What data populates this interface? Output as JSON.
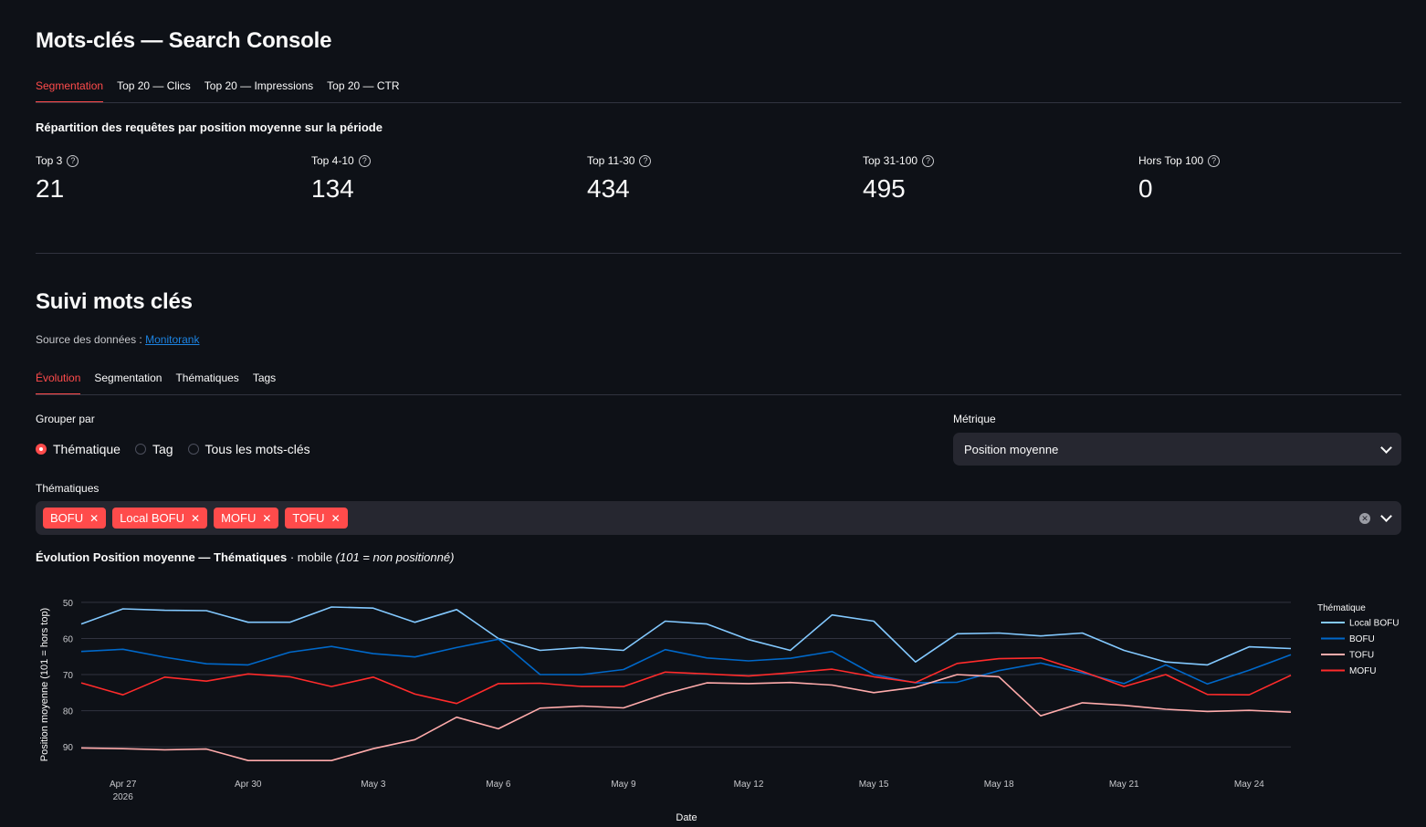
{
  "page_title": "Mots-clés — Search Console",
  "gsc_tabs": [
    {
      "label": "Segmentation",
      "active": true
    },
    {
      "label": "Top 20 — Clics",
      "active": false
    },
    {
      "label": "Top 20 — Impressions",
      "active": false
    },
    {
      "label": "Top 20 — CTR",
      "active": false
    }
  ],
  "repartition_title": "Répartition des requêtes par position moyenne sur la période",
  "metrics": [
    {
      "label": "Top 3",
      "value": "21"
    },
    {
      "label": "Top 4-10",
      "value": "134"
    },
    {
      "label": "Top 11-30",
      "value": "434"
    },
    {
      "label": "Top 31-100",
      "value": "495"
    },
    {
      "label": "Hors Top 100",
      "value": "0"
    }
  ],
  "suivi_title": "Suivi mots clés",
  "source_prefix": "Source des données :",
  "source_link": "Monitorank",
  "suivi_tabs": [
    {
      "label": "Évolution",
      "active": true
    },
    {
      "label": "Segmentation",
      "active": false
    },
    {
      "label": "Thématiques",
      "active": false
    },
    {
      "label": "Tags",
      "active": false
    }
  ],
  "group_by": {
    "label": "Grouper par",
    "options": [
      {
        "label": "Thématique",
        "selected": true
      },
      {
        "label": "Tag",
        "selected": false
      },
      {
        "label": "Tous les mots-clés",
        "selected": false
      }
    ]
  },
  "metric_select": {
    "label": "Métrique",
    "value": "Position moyenne"
  },
  "thematiques": {
    "label": "Thématiques",
    "chips": [
      "BOFU",
      "Local BOFU",
      "MOFU",
      "TOFU"
    ]
  },
  "chart_heading": {
    "bold": "Évolution Position moyenne — Thématiques",
    "normal": " · mobile ",
    "italic": "(101 = non positionné)"
  },
  "colors": {
    "accent": "#ff4b4b",
    "local_bofu": "#83c9ff",
    "bofu": "#0068c9",
    "tofu": "#ffabab",
    "mofu": "#ff2b2b"
  },
  "chart_data": {
    "type": "line",
    "xlabel": "Date",
    "ylabel": "Position moyenne (101 = hors top)",
    "y_reversed": true,
    "ylim": [
      94.5,
      47.5
    ],
    "y_ticks": [
      50,
      60,
      70,
      80,
      90
    ],
    "x_tick_labels": [
      {
        "day": 1,
        "label": "Apr 27",
        "sub": "2026"
      },
      {
        "day": 4,
        "label": "Apr 30",
        "sub": ""
      },
      {
        "day": 7,
        "label": "May 3",
        "sub": ""
      },
      {
        "day": 10,
        "label": "May 6",
        "sub": ""
      },
      {
        "day": 13,
        "label": "May 9",
        "sub": ""
      },
      {
        "day": 16,
        "label": "May 12",
        "sub": ""
      },
      {
        "day": 19,
        "label": "May 15",
        "sub": ""
      },
      {
        "day": 22,
        "label": "May 18",
        "sub": ""
      },
      {
        "day": 25,
        "label": "May 21",
        "sub": ""
      },
      {
        "day": 28,
        "label": "May 24",
        "sub": ""
      }
    ],
    "x": [
      "2026-04-26",
      "2026-04-27",
      "2026-04-28",
      "2026-04-29",
      "2026-04-30",
      "2026-05-01",
      "2026-05-02",
      "2026-05-03",
      "2026-05-04",
      "2026-05-05",
      "2026-05-06",
      "2026-05-07",
      "2026-05-08",
      "2026-05-09",
      "2026-05-10",
      "2026-05-11",
      "2026-05-12",
      "2026-05-13",
      "2026-05-14",
      "2026-05-15",
      "2026-05-16",
      "2026-05-17",
      "2026-05-18",
      "2026-05-19",
      "2026-05-20",
      "2026-05-21",
      "2026-05-22",
      "2026-05-23",
      "2026-05-24",
      "2026-05-25"
    ],
    "legend_title": "Thématique",
    "legend_position": "right",
    "series": [
      {
        "name": "Local BOFU",
        "color": "#83c9ff",
        "values": [
          56,
          51.8,
          52.2,
          52.3,
          55.5,
          55.5,
          51.3,
          51.6,
          55.5,
          52,
          60,
          63.3,
          62.5,
          63.3,
          55.2,
          56,
          60.3,
          63.3,
          53.5,
          55.2,
          66.5,
          58.7,
          58.5,
          59.3,
          58.5,
          63.3,
          66.5,
          67.3,
          62.3,
          62.8
        ]
      },
      {
        "name": "BOFU",
        "color": "#0068c9",
        "values": [
          63.6,
          63,
          65.2,
          67,
          67.3,
          63.8,
          62.2,
          64.2,
          65.1,
          62.5,
          60.2,
          70,
          70,
          68.6,
          63.1,
          65.4,
          66.2,
          65.5,
          63.6,
          70,
          72.3,
          72.1,
          68.9,
          66.8,
          69.5,
          72.5,
          67.3,
          72.6,
          68.8,
          64.5
        ]
      },
      {
        "name": "TOFU",
        "color": "#ffabab",
        "values": [
          90.3,
          90.5,
          90.8,
          90.6,
          93.8,
          93.8,
          93.8,
          90.5,
          88,
          81.8,
          85,
          79.3,
          78.7,
          79.2,
          75.3,
          72.3,
          72.5,
          72.2,
          72.9,
          75,
          73.5,
          70,
          70.6,
          81.4,
          77.8,
          78.5,
          79.6,
          80.2,
          79.9,
          80.4
        ]
      },
      {
        "name": "MOFU",
        "color": "#ff2b2b",
        "values": [
          72.3,
          75.6,
          70.7,
          71.8,
          69.8,
          70.6,
          73.3,
          70.7,
          75.4,
          78,
          72.5,
          72.4,
          73.3,
          73.3,
          69.3,
          69.8,
          70.4,
          69.5,
          68.5,
          70.6,
          72.2,
          66.9,
          65.6,
          65.4,
          69.1,
          73.3,
          70,
          75.5,
          75.6,
          70.2
        ]
      }
    ]
  }
}
